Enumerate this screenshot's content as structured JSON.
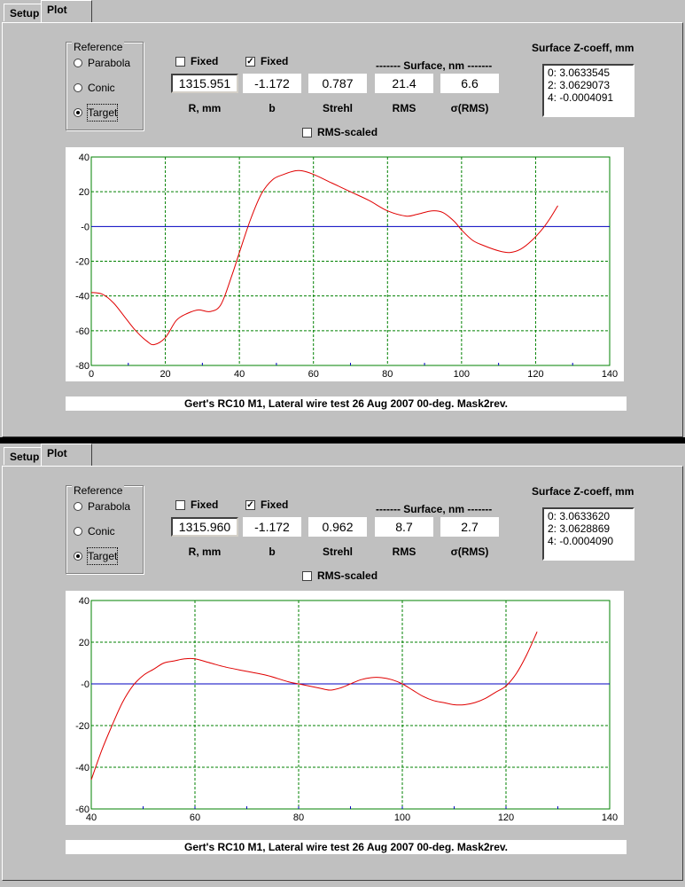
{
  "colors": {
    "curve": "#e00000",
    "zero_line": "#0000c0",
    "grid": "#008000",
    "axis": "#008000",
    "tick_mark": "#0000c0"
  },
  "panels": [
    {
      "tabs": {
        "setup": "Setup",
        "plot": "Plot"
      },
      "reference": {
        "title": "Reference",
        "options": [
          "Parabola",
          "Conic",
          "Target"
        ],
        "selected": "Target"
      },
      "fixed_r": {
        "label": "Fixed",
        "checked": false
      },
      "fixed_b": {
        "label": "Fixed",
        "checked": true
      },
      "surface_header": "------- Surface, nm -------",
      "fields": {
        "r": "1315.951",
        "b": "-1.172",
        "strehl": "0.787",
        "rms": "21.4",
        "sigma": "6.6"
      },
      "labels": {
        "r": "R, mm",
        "b": "b",
        "strehl": "Strehl",
        "rms": "RMS",
        "sigma": "σ(RMS)"
      },
      "rms_scaled": {
        "label": "RMS-scaled",
        "checked": false
      },
      "zcoeff": {
        "title": "Surface Z-coeff, mm",
        "rows": [
          "0:  3.0633545",
          "2:  3.0629073",
          "4:  -0.0004091"
        ]
      },
      "caption": "Gert's RC10 M1, Lateral wire test 26 Aug 2007 00-deg. Mask2rev.",
      "chart_data": {
        "type": "line",
        "xlim": [
          0,
          140
        ],
        "ylim": [
          -80,
          40
        ],
        "xticks": [
          "0",
          "20",
          "40",
          "60",
          "80",
          "100",
          "120",
          "140"
        ],
        "yticks": [
          "40",
          "20",
          "-0",
          "-20",
          "-40",
          "-60",
          "-80"
        ],
        "grid": true,
        "x": [
          0,
          3,
          6,
          9,
          12,
          15,
          17,
          20,
          23,
          26,
          29,
          32,
          35,
          38,
          40,
          43,
          46,
          49,
          52,
          55,
          57,
          60,
          65,
          70,
          75,
          80,
          85,
          88,
          92,
          95,
          98,
          100,
          103,
          106,
          110,
          113,
          116,
          119,
          122,
          124,
          126
        ],
        "y": [
          -38,
          -39,
          -44,
          -52,
          -60,
          -66,
          -68,
          -64,
          -54,
          -50,
          -48,
          -49,
          -45,
          -28,
          -15,
          4,
          19,
          27,
          30,
          32,
          32,
          30,
          25,
          20,
          15,
          9,
          6,
          7,
          9,
          8,
          3,
          -2,
          -8,
          -11,
          -14,
          -15,
          -13,
          -8,
          -1,
          5,
          12
        ]
      }
    },
    {
      "tabs": {
        "setup": "Setup",
        "plot": "Plot"
      },
      "reference": {
        "title": "Reference",
        "options": [
          "Parabola",
          "Conic",
          "Target"
        ],
        "selected": "Target"
      },
      "fixed_r": {
        "label": "Fixed",
        "checked": false
      },
      "fixed_b": {
        "label": "Fixed",
        "checked": true
      },
      "surface_header": "------- Surface, nm -------",
      "fields": {
        "r": "1315.960",
        "b": "-1.172",
        "strehl": "0.962",
        "rms": "8.7",
        "sigma": "2.7"
      },
      "labels": {
        "r": "R, mm",
        "b": "b",
        "strehl": "Strehl",
        "rms": "RMS",
        "sigma": "σ(RMS)"
      },
      "rms_scaled": {
        "label": "RMS-scaled",
        "checked": false
      },
      "zcoeff": {
        "title": "Surface Z-coeff, mm",
        "rows": [
          "0:  3.0633620",
          "2:  3.0628869",
          "4:  -0.0004090"
        ]
      },
      "caption": "Gert's RC10 M1, Lateral wire test 26 Aug 2007 00-deg. Mask2rev.",
      "chart_data": {
        "type": "line",
        "xlim": [
          40,
          140
        ],
        "ylim": [
          -60,
          40
        ],
        "xticks": [
          "40",
          "60",
          "80",
          "100",
          "120",
          "140"
        ],
        "yticks": [
          "40",
          "20",
          "-0",
          "-20",
          "-40",
          "-60"
        ],
        "grid": true,
        "x": [
          40,
          42,
          44,
          46,
          48,
          50,
          52,
          54,
          56,
          58,
          60,
          63,
          66,
          70,
          74,
          78,
          80,
          82,
          84,
          86,
          88,
          90,
          92,
          94,
          96,
          98,
          100,
          102,
          104,
          106,
          108,
          110,
          112,
          114,
          116,
          118,
          120,
          122,
          124,
          126
        ],
        "y": [
          -46,
          -32,
          -20,
          -9,
          -1,
          4,
          7,
          10,
          11,
          12,
          12,
          10,
          8,
          6,
          4,
          1,
          0,
          -1,
          -2,
          -3,
          -2,
          0,
          2,
          3,
          3,
          2,
          0,
          -3,
          -6,
          -8,
          -9,
          -10,
          -10,
          -9,
          -7,
          -4,
          -1,
          5,
          14,
          25
        ]
      }
    }
  ]
}
